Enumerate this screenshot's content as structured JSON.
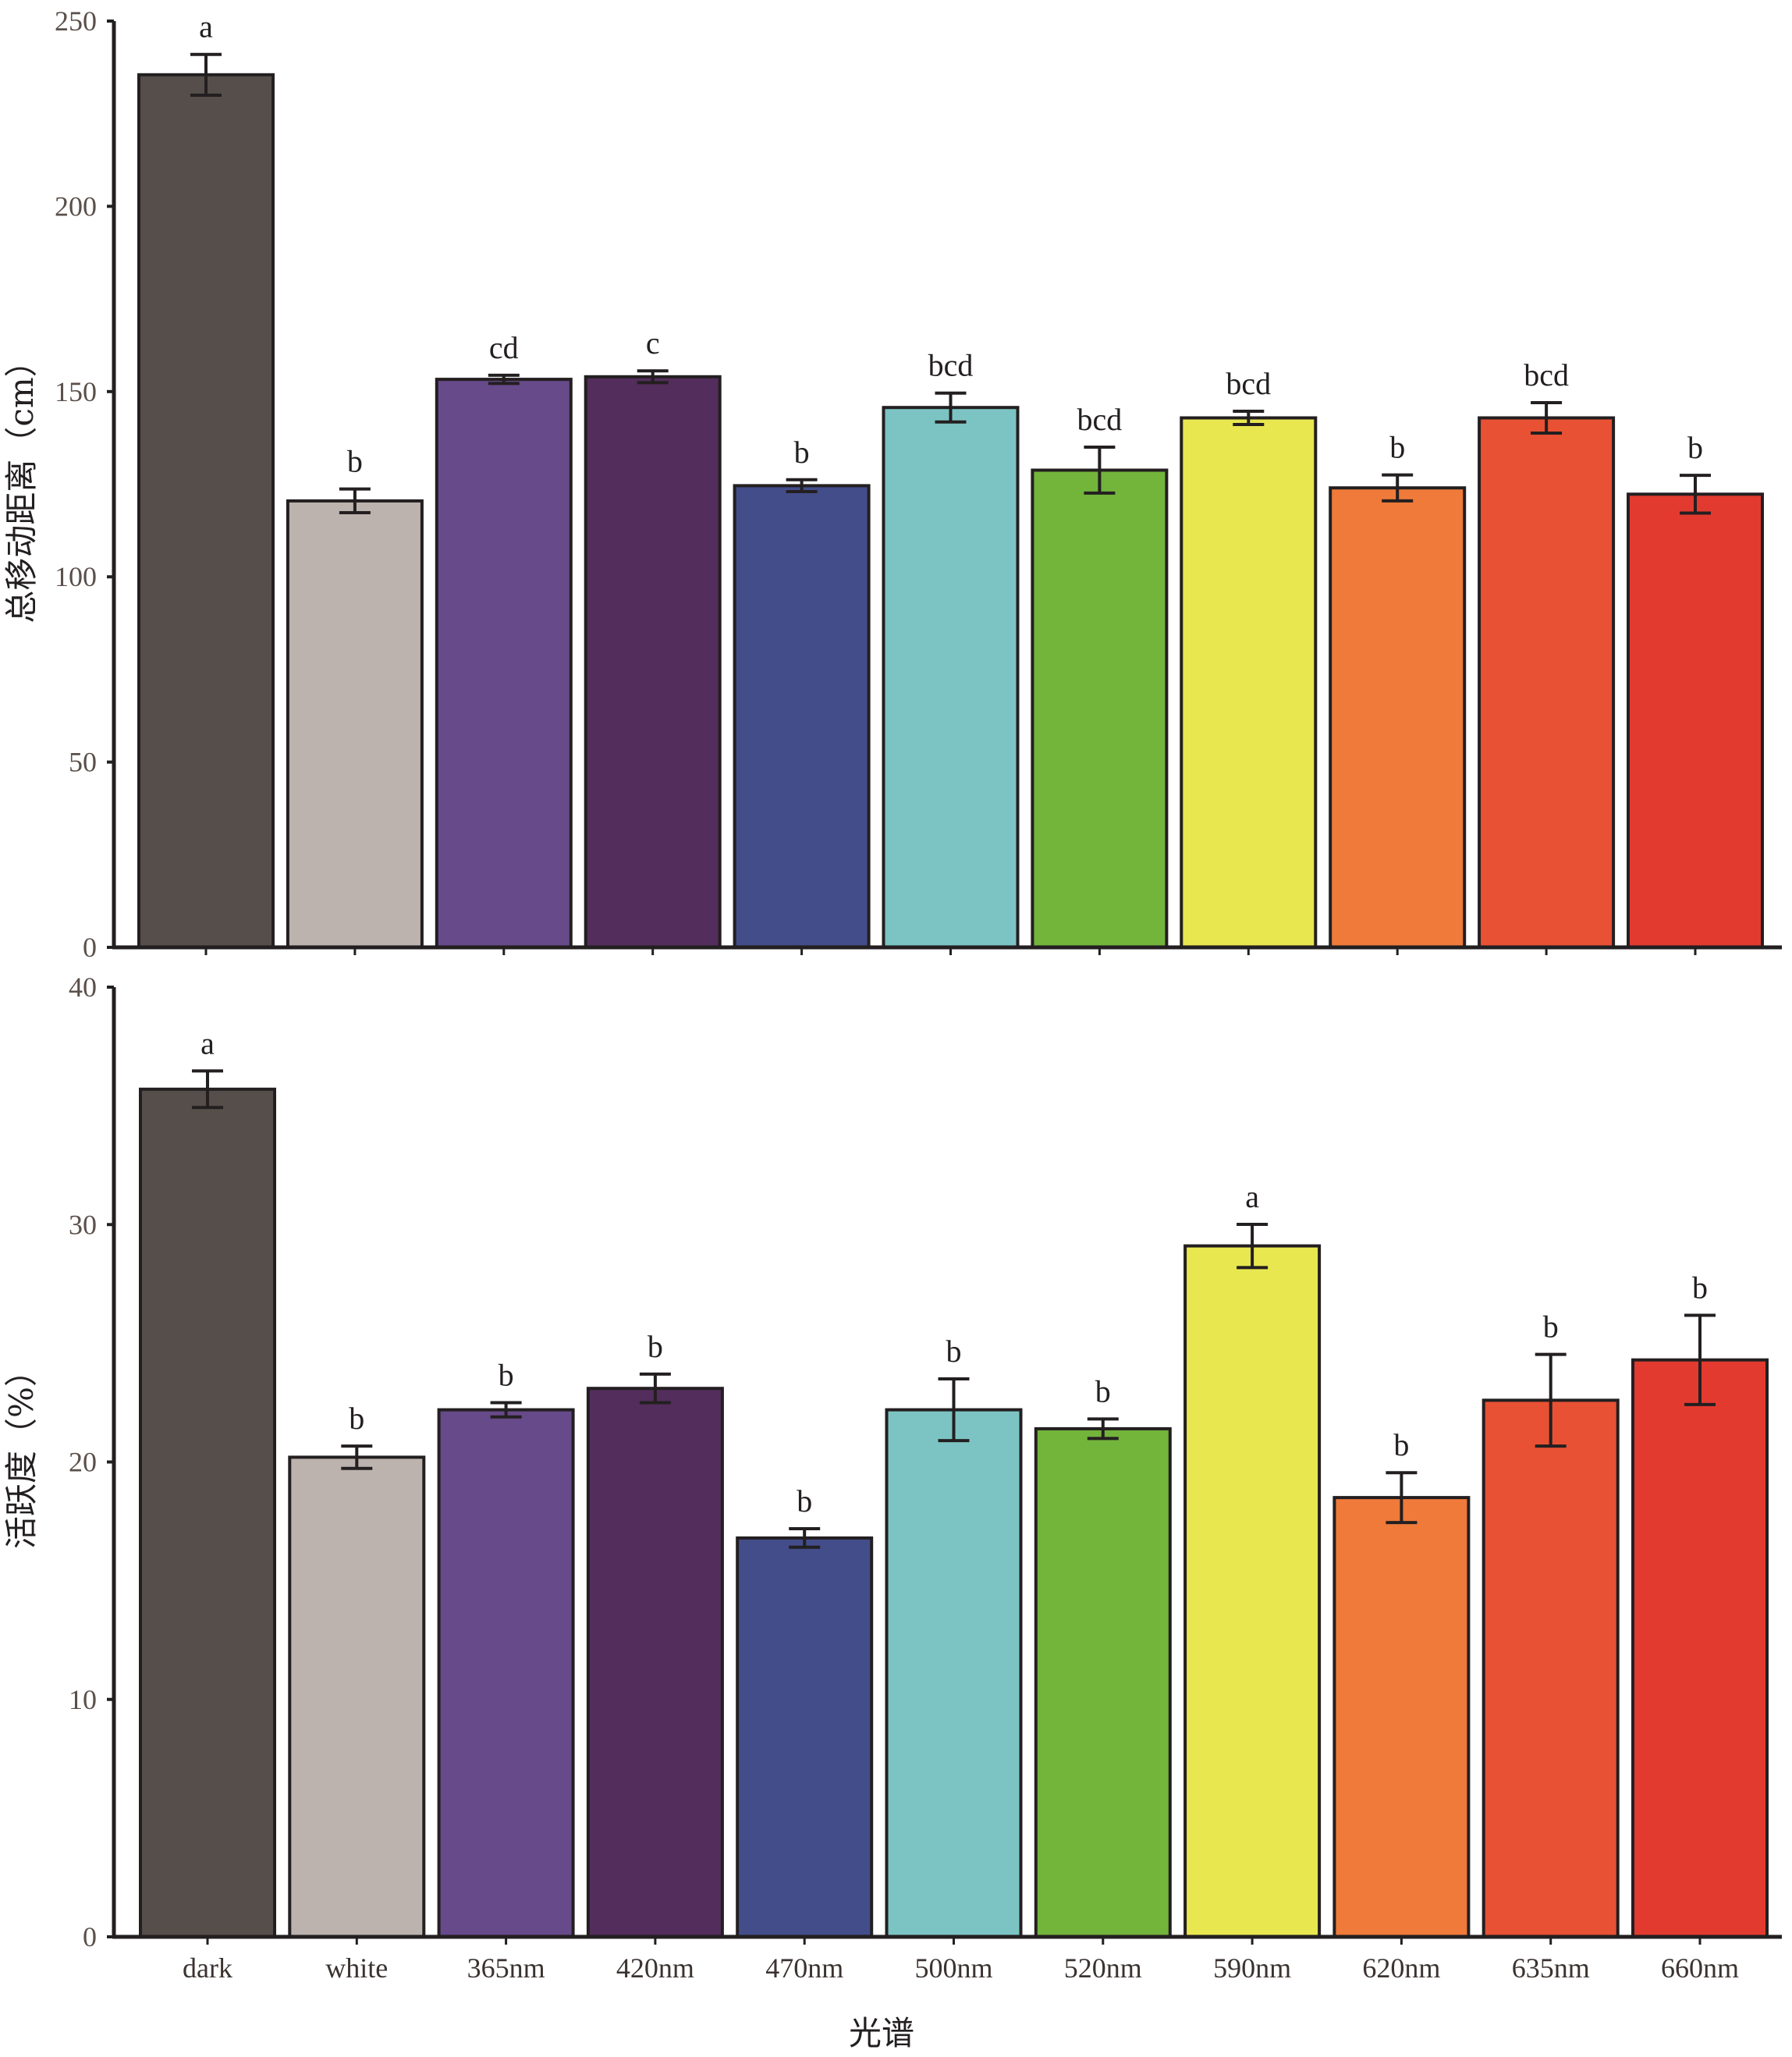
{
  "chart_data": [
    {
      "type": "bar",
      "title": "",
      "xlabel": "",
      "ylabel": "总移动距离（cm）",
      "ylim": [
        0,
        250
      ],
      "yticks": [
        "0",
        "50",
        "100",
        "150",
        "200",
        "250"
      ],
      "categories": [
        "dark",
        "white",
        "365nm",
        "420nm",
        "470nm",
        "500nm",
        "520nm",
        "590nm",
        "620nm",
        "635nm",
        "660nm"
      ],
      "values": [
        235.5,
        120.5,
        153.3,
        154.0,
        124.6,
        145.7,
        128.8,
        142.9,
        124.0,
        142.9,
        122.3
      ],
      "errors": [
        5.5,
        3.2,
        1.1,
        1.6,
        1.6,
        3.9,
        6.2,
        1.8,
        3.5,
        4.1,
        5.1
      ],
      "significance": [
        "a",
        "b",
        "cd",
        "c",
        "b",
        "bcd",
        "bcd",
        "bcd",
        "b",
        "bcd",
        "b"
      ],
      "grid": false,
      "show_x_tick_labels": false
    },
    {
      "type": "bar",
      "title": "",
      "xlabel": "光谱",
      "ylabel": "活跃度（%）",
      "ylim": [
        0,
        40
      ],
      "yticks": [
        "0",
        "10",
        "20",
        "30",
        "40"
      ],
      "categories": [
        "dark",
        "white",
        "365nm",
        "420nm",
        "470nm",
        "500nm",
        "520nm",
        "590nm",
        "620nm",
        "635nm",
        "660nm"
      ],
      "values": [
        35.7,
        20.2,
        22.2,
        23.1,
        16.8,
        22.2,
        21.4,
        29.1,
        18.5,
        22.6,
        24.3
      ],
      "errors": [
        0.77,
        0.47,
        0.3,
        0.6,
        0.39,
        1.3,
        0.41,
        0.91,
        1.05,
        1.93,
        1.88
      ],
      "significance": [
        "a",
        "b",
        "b",
        "b",
        "b",
        "b",
        "b",
        "a",
        "b",
        "b",
        "b"
      ],
      "grid": false,
      "show_x_tick_labels": true
    }
  ],
  "colors": {
    "bars": [
      "#564e4a",
      "#bcb3ae",
      "#674a8a",
      "#532d5c",
      "#434d8a",
      "#7cc4c3",
      "#73b43b",
      "#e8e750",
      "#ef7a3a",
      "#e85134",
      "#e33a30"
    ],
    "axis": "#231f20",
    "error_bar": "#231f20"
  }
}
